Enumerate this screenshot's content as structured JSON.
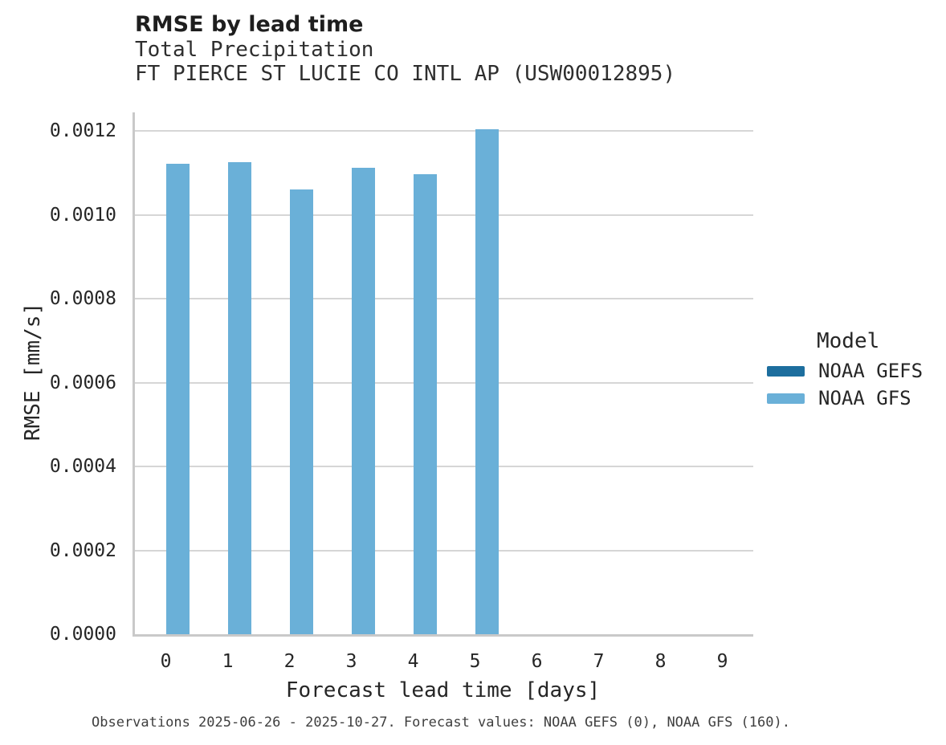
{
  "title": "RMSE by lead time",
  "subtitle1": "Total Precipitation",
  "subtitle2": "FT PIERCE ST LUCIE CO INTL AP (USW00012895)",
  "caption": "Observations 2025-06-26 - 2025-10-27. Forecast values: NOAA GEFS (0), NOAA GFS (160).",
  "legend": {
    "title": "Model",
    "entries": [
      {
        "name": "NOAA GEFS",
        "color": "#1d6e9e"
      },
      {
        "name": "NOAA GFS",
        "color": "#6ab0d8"
      }
    ]
  },
  "chart_data": {
    "type": "bar",
    "bar_mode": "grouped",
    "title": "RMSE by lead time",
    "subtitle": "Total Precipitation — FT PIERCE ST LUCIE CO INTL AP (USW00012895)",
    "xlabel": "Forecast lead time [days]",
    "ylabel": "RMSE [mm/s]",
    "categories": [
      "0",
      "1",
      "2",
      "3",
      "4",
      "5",
      "6",
      "7",
      "8",
      "9"
    ],
    "series": [
      {
        "name": "NOAA GEFS",
        "color": "#1d6e9e",
        "values": [
          null,
          null,
          null,
          null,
          null,
          null,
          null,
          null,
          null,
          null
        ]
      },
      {
        "name": "NOAA GFS",
        "color": "#6ab0d8",
        "values": [
          0.001121,
          0.001125,
          0.001061,
          0.001112,
          0.001097,
          0.001203,
          null,
          null,
          null,
          null
        ]
      }
    ],
    "yticks": [
      {
        "value": 0.0,
        "label": "0.0000"
      },
      {
        "value": 0.0002,
        "label": "0.0002"
      },
      {
        "value": 0.0004,
        "label": "0.0004"
      },
      {
        "value": 0.0006,
        "label": "0.0006"
      },
      {
        "value": 0.0008,
        "label": "0.0008"
      },
      {
        "value": 0.001,
        "label": "0.0010"
      },
      {
        "value": 0.0012,
        "label": "0.0012"
      }
    ],
    "ylim": [
      0,
      0.001244
    ],
    "grid": true,
    "legend_position": "center-right"
  }
}
